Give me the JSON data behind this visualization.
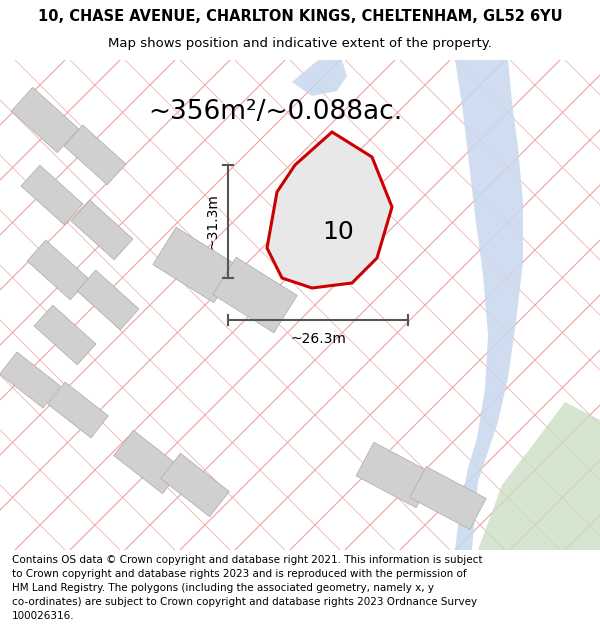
{
  "title_line1": "10, CHASE AVENUE, CHARLTON KINGS, CHELTENHAM, GL52 6YU",
  "title_line2": "Map shows position and indicative extent of the property.",
  "area_text": "~356m²/~0.088ac.",
  "dim_vertical": "~31.3m",
  "dim_horizontal": "~26.3m",
  "property_number": "10",
  "footer_lines": [
    "Contains OS data © Crown copyright and database right 2021. This information is subject",
    "to Crown copyright and database rights 2023 and is reproduced with the permission of",
    "HM Land Registry. The polygons (including the associated geometry, namely x, y",
    "co-ordinates) are subject to Crown copyright and database rights 2023 Ordnance Survey",
    "100026316."
  ],
  "map_bg": "#f8f8f8",
  "property_polygon_color": "#cc0000",
  "property_fill_color": "#e8e8e8",
  "building_color": "#d0d0d0",
  "cadastral_line_color": "#f0a0a0",
  "river_color": "#c8d8ee",
  "green_color": "#c8ddc0",
  "dim_line_color": "#555555",
  "title_fontsize": 10.5,
  "subtitle_fontsize": 9.5,
  "area_fontsize": 19,
  "dim_fontsize": 10,
  "number_fontsize": 18,
  "footer_fontsize": 7.5
}
